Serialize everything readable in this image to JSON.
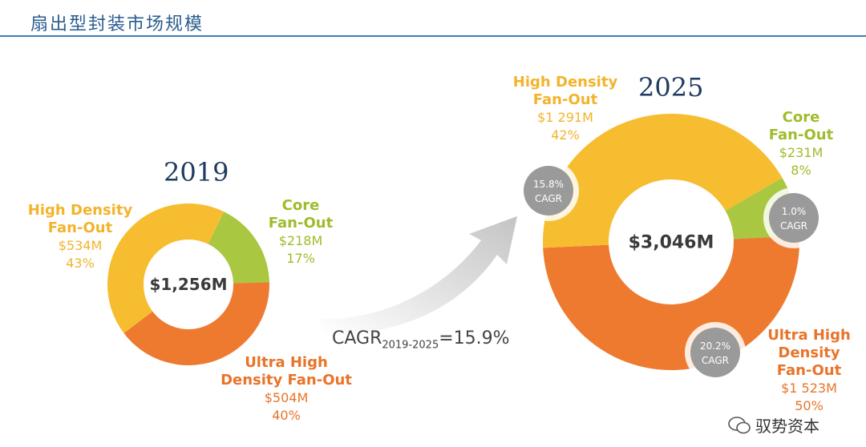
{
  "page": {
    "title": "扇出型封装市场规模"
  },
  "watermark": {
    "text": "驭势资本"
  },
  "cagr_overall": {
    "prefix": "CAGR",
    "subscript": "2019-2025",
    "suffix": "=15.9%"
  },
  "colors": {
    "high_density": "#f6bd31",
    "core": "#a9c741",
    "ultra_high": "#ee7a30",
    "badge": "#9a9a9a"
  },
  "chart_data": [
    {
      "type": "pie",
      "year": "2019",
      "title": "2019",
      "total": "$1,256M",
      "slices": [
        {
          "key": "high_density",
          "name_line1": "High Density",
          "name_line2": "Fan-Out",
          "value": 534,
          "value_label": "$534M",
          "percent": 43,
          "percent_label": "43%"
        },
        {
          "key": "core",
          "name_line1": "Core",
          "name_line2": "Fan-Out",
          "value": 218,
          "value_label": "$218M",
          "percent": 17,
          "percent_label": "17%"
        },
        {
          "key": "ultra_high",
          "name_line1": "Ultra High",
          "name_line2": "Density Fan-Out",
          "value": 504,
          "value_label": "$504M",
          "percent": 40,
          "percent_label": "40%"
        }
      ]
    },
    {
      "type": "pie",
      "year": "2025",
      "title": "2025",
      "total": "$3,046M",
      "slices": [
        {
          "key": "high_density",
          "name_line1": "High Density",
          "name_line2": "Fan-Out",
          "value": 1291,
          "value_label": "$1 291M",
          "percent": 42,
          "percent_label": "42%",
          "cagr_line1": "15.8%",
          "cagr_line2": "CAGR"
        },
        {
          "key": "core",
          "name_line1": "Core",
          "name_line2": "Fan-Out",
          "value": 231,
          "value_label": "$231M",
          "percent": 8,
          "percent_label": "8%",
          "cagr_line1": "1.0%",
          "cagr_line2": "CAGR"
        },
        {
          "key": "ultra_high",
          "name_line1": "Ultra High",
          "name_line2": "Density",
          "name_line3": "Fan-Out",
          "value": 1523,
          "value_label": "$1 523M",
          "percent": 50,
          "percent_label": "50%",
          "cagr_line1": "20.2%",
          "cagr_line2": "CAGR"
        }
      ]
    }
  ]
}
